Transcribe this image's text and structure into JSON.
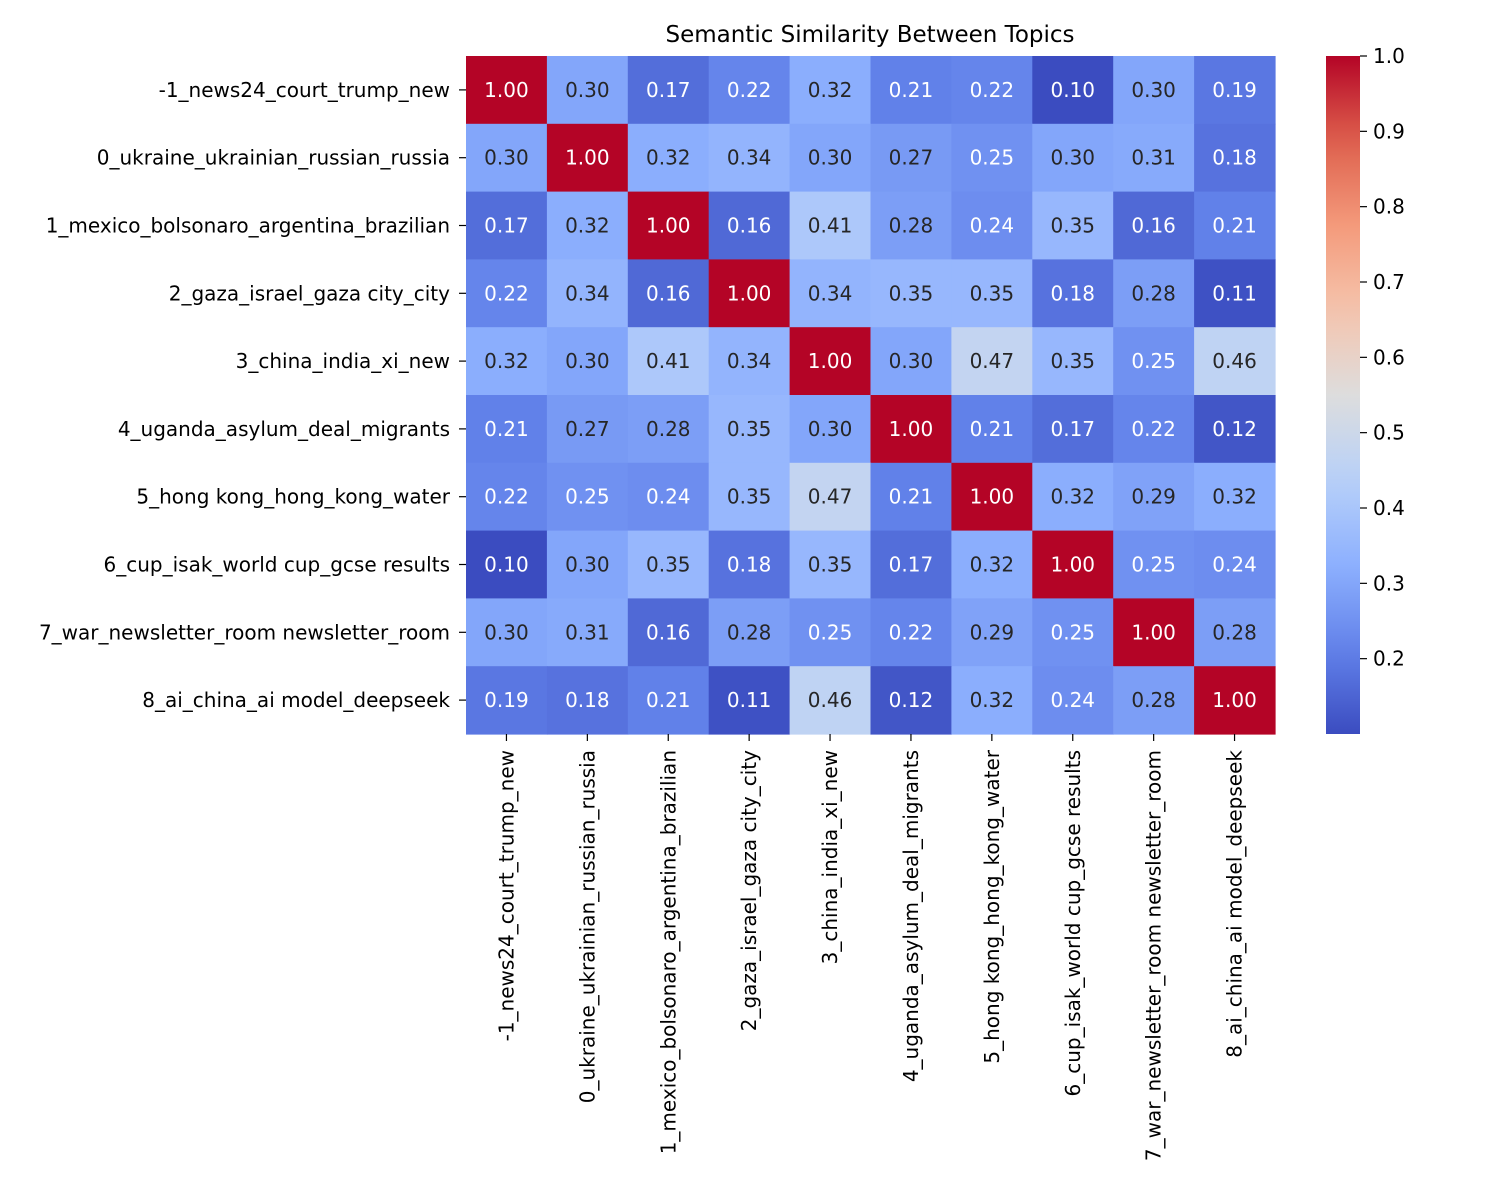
{
  "chart_data": {
    "type": "heatmap",
    "title": "Semantic Similarity Between Topics",
    "xlabel": "",
    "ylabel": "",
    "labels": [
      "-1_news24_court_trump_new",
      "0_ukraine_ukrainian_russian_russia",
      "1_mexico_bolsonaro_argentina_brazilian",
      "2_gaza_israel_gaza city_city",
      "3_china_india_xi_new",
      "4_uganda_asylum_deal_migrants",
      "5_hong kong_hong_kong_water",
      "6_cup_isak_world cup_gcse results",
      "7_war_newsletter_room newsletter_room",
      "8_ai_china_ai model_deepseek"
    ],
    "matrix": [
      [
        1.0,
        0.3,
        0.17,
        0.22,
        0.32,
        0.21,
        0.22,
        0.1,
        0.3,
        0.19
      ],
      [
        0.3,
        1.0,
        0.32,
        0.34,
        0.3,
        0.27,
        0.25,
        0.3,
        0.31,
        0.18
      ],
      [
        0.17,
        0.32,
        1.0,
        0.16,
        0.41,
        0.28,
        0.24,
        0.35,
        0.16,
        0.21
      ],
      [
        0.22,
        0.34,
        0.16,
        1.0,
        0.34,
        0.35,
        0.35,
        0.18,
        0.28,
        0.11
      ],
      [
        0.32,
        0.3,
        0.41,
        0.34,
        1.0,
        0.3,
        0.47,
        0.35,
        0.25,
        0.46
      ],
      [
        0.21,
        0.27,
        0.28,
        0.35,
        0.3,
        1.0,
        0.21,
        0.17,
        0.22,
        0.12
      ],
      [
        0.22,
        0.25,
        0.24,
        0.35,
        0.47,
        0.21,
        1.0,
        0.32,
        0.29,
        0.32
      ],
      [
        0.1,
        0.3,
        0.35,
        0.18,
        0.35,
        0.17,
        0.32,
        1.0,
        0.25,
        0.24
      ],
      [
        0.3,
        0.31,
        0.16,
        0.28,
        0.25,
        0.22,
        0.29,
        0.25,
        1.0,
        0.28
      ],
      [
        0.19,
        0.18,
        0.21,
        0.11,
        0.46,
        0.12,
        0.32,
        0.24,
        0.28,
        1.0
      ]
    ],
    "colormap": "coolwarm",
    "vmin": 0.1,
    "vmax": 1.0,
    "colorbar_ticks": [
      "0.2",
      "0.3",
      "0.4",
      "0.5",
      "0.6",
      "0.7",
      "0.8",
      "0.9",
      "1.0"
    ],
    "annotation_format": "2 decimals",
    "grid": false,
    "legend": "colorbar-right"
  }
}
